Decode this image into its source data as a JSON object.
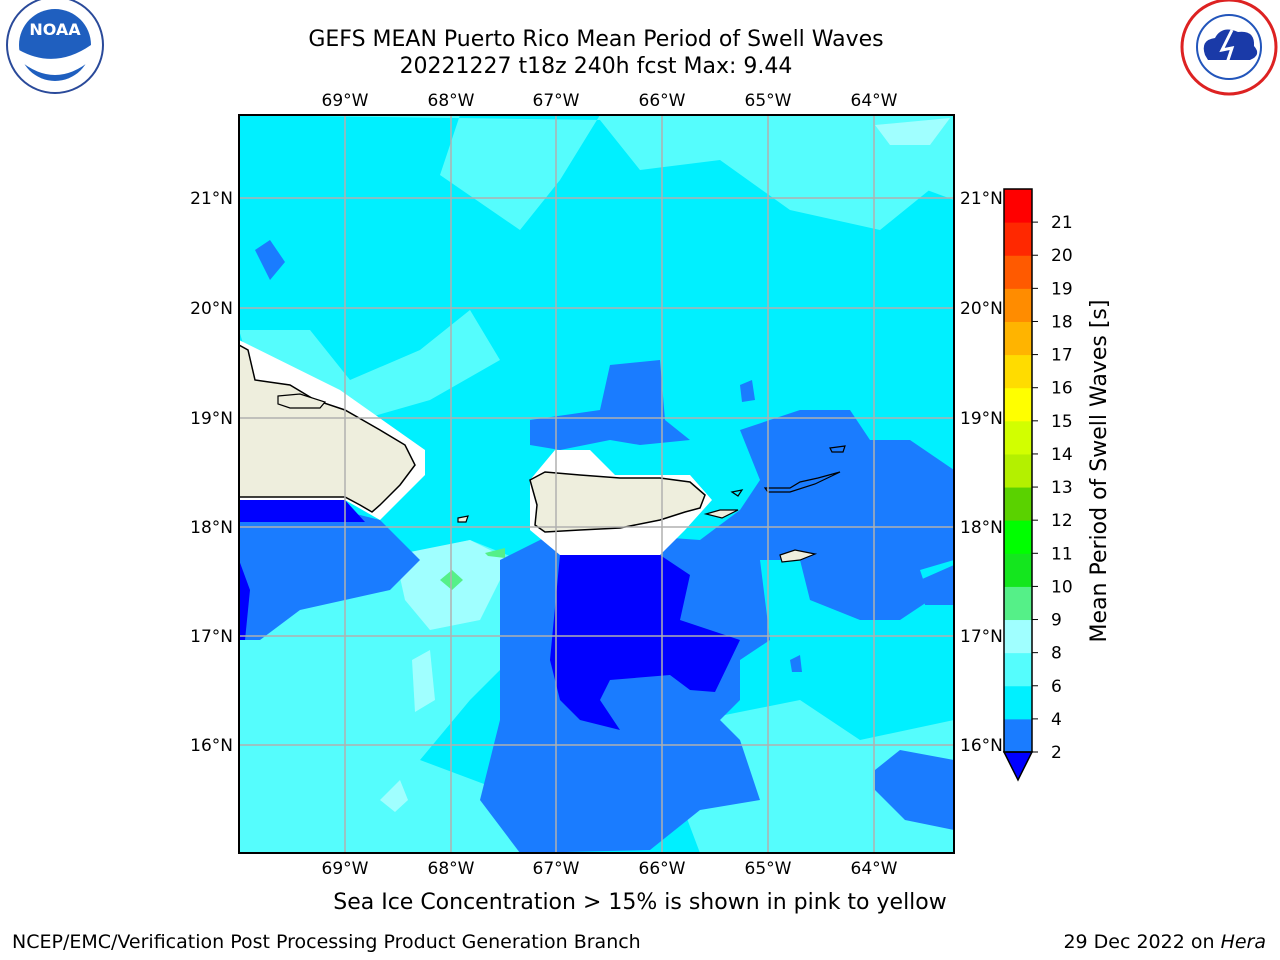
{
  "title_line1": "GEFS MEAN Puerto Rico Mean Period of Swell Waves",
  "title_line2": "20221227 t18z 240h fcst   Max: 9.44",
  "caption": "Sea Ice Concentration > 15% is shown in pink to yellow",
  "footer_left": "NCEP/EMC/Verification Post Processing Product Generation Branch",
  "footer_date": "29 Dec 2022 on ",
  "footer_machine": "Hera",
  "logos": {
    "left": "noaa-logo",
    "right": "nws-logo"
  },
  "map": {
    "lon_labels": [
      "69°W",
      "68°W",
      "67°W",
      "66°W",
      "65°W",
      "64°W"
    ],
    "lat_labels": [
      "21°N",
      "20°N",
      "19°N",
      "18°N",
      "17°N",
      "16°N"
    ],
    "land_color": "#eeeedd",
    "grid_color": "#b0b0b0"
  },
  "colorbar": {
    "label": "Mean Period of Swell Waves [s]",
    "ticks": [
      "2",
      "4",
      "6",
      "8",
      "9",
      "10",
      "11",
      "12",
      "13",
      "14",
      "15",
      "16",
      "17",
      "18",
      "19",
      "20",
      "21"
    ],
    "colors": [
      "#1a7cff",
      "#00f0ff",
      "#55fdfd",
      "#a0ffff",
      "#55f088",
      "#14e61e",
      "#00ff00",
      "#5ad200",
      "#b4f000",
      "#d2ff00",
      "#ffff00",
      "#ffdc00",
      "#ffb400",
      "#ff8c00",
      "#ff5a00",
      "#ff2800",
      "#ff0000"
    ],
    "under_color": "#0000ff"
  }
}
